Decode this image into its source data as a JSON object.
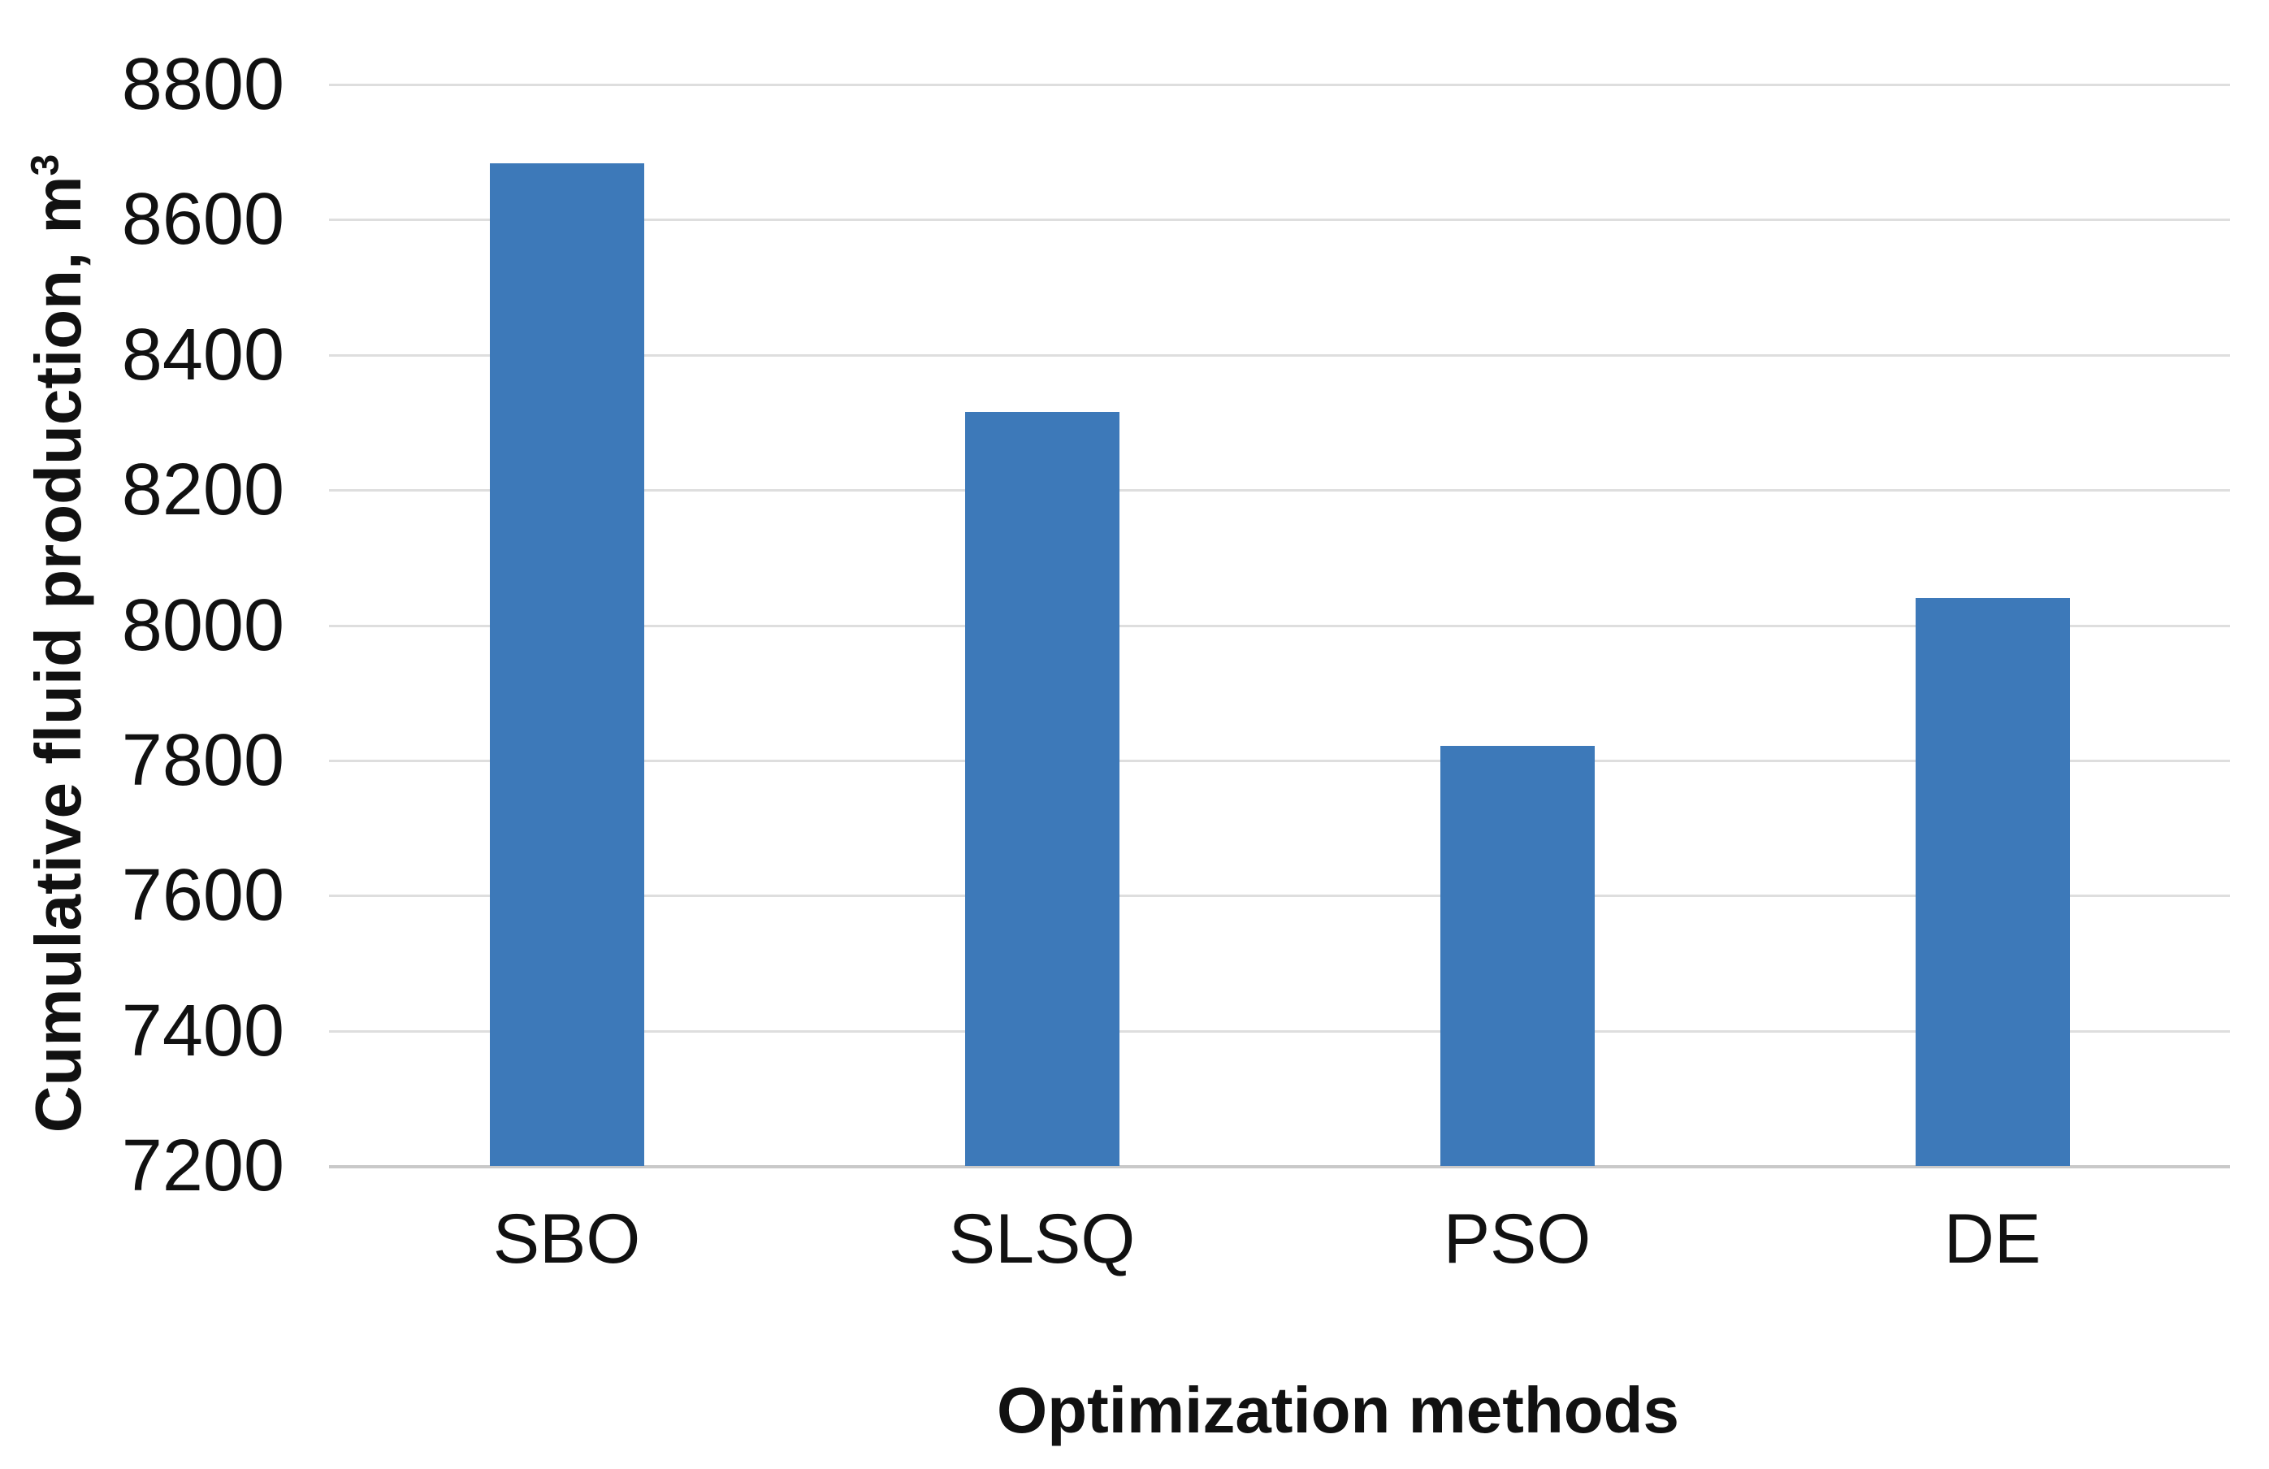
{
  "chart_data": {
    "type": "bar",
    "title": "",
    "categories": [
      "SBO",
      "SLSQ",
      "PSO",
      "DE"
    ],
    "values": [
      8683,
      8316,
      7822,
      8040
    ],
    "xlabel": "Optimization methods",
    "ylabel": "Cumulative fluid production, m³",
    "ylabel_parts": {
      "text": "Cumulative fluid production, m",
      "sup": "3"
    },
    "ylim": [
      7200,
      8800
    ],
    "yticks": [
      8800,
      8600,
      8400,
      8200,
      8000,
      7800,
      7600,
      7400,
      7200
    ],
    "ytick_step": 200,
    "grid": true,
    "legend": "none",
    "bar_color": "#3d79b9",
    "gridline_color": "#dedede",
    "axisline_color": "#c9c9c9",
    "text_color": "#111111"
  }
}
